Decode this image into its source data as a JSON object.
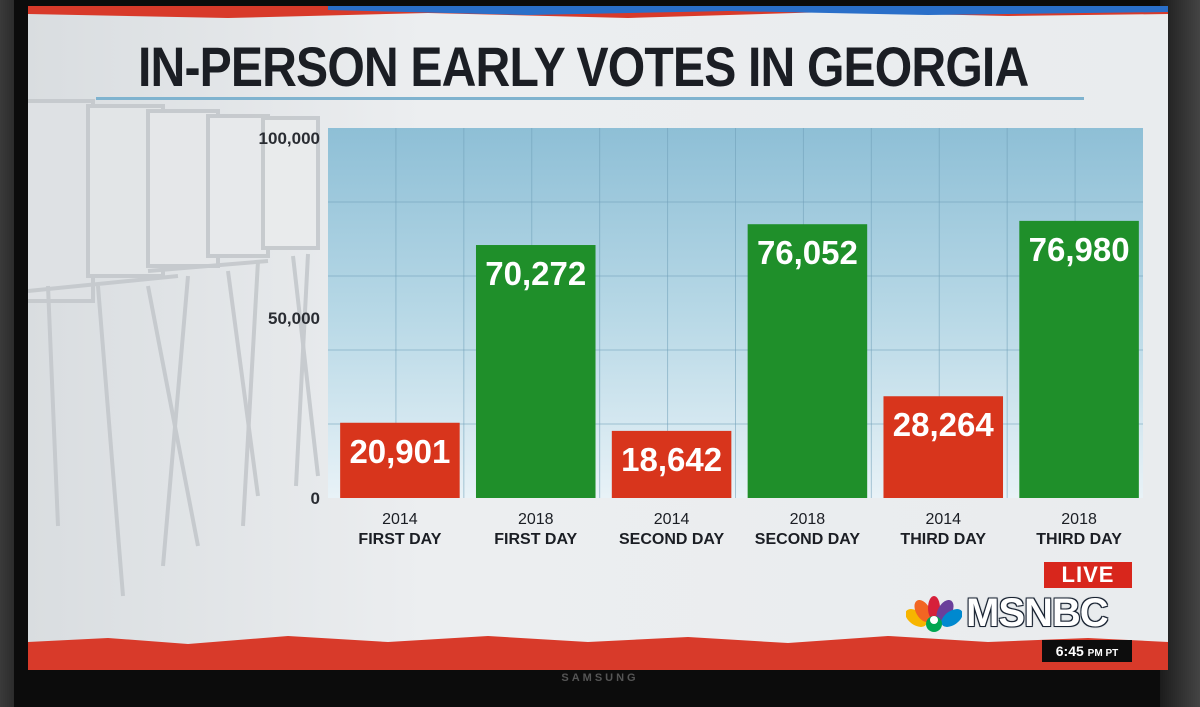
{
  "tv": {
    "brand": "SAMSUNG"
  },
  "broadcast": {
    "live_label": "LIVE",
    "network": "MSNBC",
    "time": "6:45",
    "timezone": "PM PT",
    "colors": {
      "live_red": "#d8261c",
      "bar_red": "#d8351c",
      "bar_green": "#1f8f2a",
      "panel_blue": "#a9cfe1",
      "banner_red": "#d83a2a",
      "banner_blue": "#2a6fc9"
    },
    "icons": [
      "peacock-icon"
    ]
  },
  "chart_data": {
    "type": "bar",
    "title": "IN-PERSON EARLY VOTES IN GEORGIA",
    "xlabel": "",
    "ylabel": "",
    "ylim": [
      0,
      100000
    ],
    "y_ticks": [
      0,
      50000,
      100000
    ],
    "y_tick_labels": [
      "0",
      "50,000",
      "100,000"
    ],
    "grid": true,
    "categories": [
      [
        "2014",
        "FIRST DAY"
      ],
      [
        "2018",
        "FIRST DAY"
      ],
      [
        "2014",
        "SECOND DAY"
      ],
      [
        "2018",
        "SECOND DAY"
      ],
      [
        "2014",
        "THIRD DAY"
      ],
      [
        "2018",
        "THIRD DAY"
      ]
    ],
    "values": [
      20901,
      70272,
      18642,
      76052,
      28264,
      76980
    ],
    "value_labels": [
      "20,901",
      "70,272",
      "18,642",
      "76,052",
      "28,264",
      "76,980"
    ],
    "bar_colors": [
      "#d8351c",
      "#1f8f2a",
      "#d8351c",
      "#1f8f2a",
      "#d8351c",
      "#1f8f2a"
    ]
  }
}
